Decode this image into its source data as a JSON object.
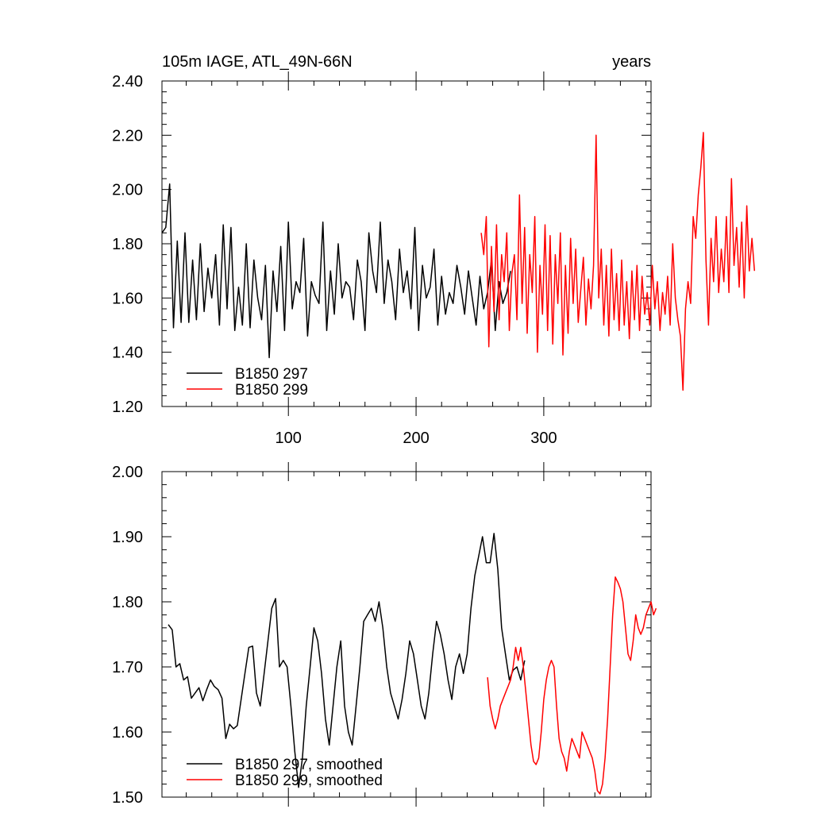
{
  "chart_data": [
    {
      "type": "line",
      "title_left": "105m IAGE, ATL_49N-66N",
      "title_right": "years",
      "xlim": [
        1,
        384
      ],
      "ylim": [
        1.2,
        2.4
      ],
      "x_ticks": [
        100,
        200,
        300
      ],
      "x_tick_labels": [
        "100",
        "200",
        "300"
      ],
      "y_ticks": [
        1.2,
        1.4,
        1.6,
        1.8,
        2.0,
        2.2,
        2.4
      ],
      "y_tick_labels": [
        "1.20",
        "1.40",
        "1.60",
        "1.80",
        "2.00",
        "2.20",
        "2.40"
      ],
      "legend_position": "bottom-left",
      "series": [
        {
          "name": "B1850 297",
          "color": "#000000",
          "x_start": 1,
          "x_step": 3,
          "values": [
            1.84,
            1.86,
            2.02,
            1.49,
            1.81,
            1.51,
            1.84,
            1.51,
            1.74,
            1.52,
            1.8,
            1.55,
            1.71,
            1.6,
            1.76,
            1.5,
            1.87,
            1.56,
            1.86,
            1.48,
            1.64,
            1.5,
            1.8,
            1.49,
            1.74,
            1.6,
            1.52,
            1.72,
            1.38,
            1.7,
            1.55,
            1.79,
            1.48,
            1.88,
            1.56,
            1.66,
            1.62,
            1.82,
            1.46,
            1.66,
            1.61,
            1.58,
            1.88,
            1.48,
            1.7,
            1.54,
            1.8,
            1.6,
            1.66,
            1.64,
            1.52,
            1.74,
            1.66,
            1.48,
            1.84,
            1.7,
            1.62,
            1.88,
            1.58,
            1.74,
            1.66,
            1.52,
            1.78,
            1.62,
            1.7,
            1.56,
            1.86,
            1.48,
            1.72,
            1.6,
            1.64,
            1.78,
            1.5,
            1.68,
            1.54,
            1.62,
            1.58,
            1.72,
            1.64,
            1.54,
            1.7,
            1.6,
            1.5,
            1.68,
            1.56,
            1.62,
            1.74,
            1.48,
            1.66,
            1.58,
            1.62,
            1.7
          ]
        },
        {
          "name": "B1850 299",
          "color": "#ff0000",
          "x_start": 251,
          "x_step": 2,
          "values": [
            1.84,
            1.76,
            1.9,
            1.42,
            1.79,
            1.55,
            1.87,
            1.52,
            1.76,
            1.66,
            1.84,
            1.48,
            1.69,
            1.76,
            1.52,
            1.98,
            1.58,
            1.86,
            1.47,
            1.76,
            1.62,
            1.9,
            1.4,
            1.72,
            1.54,
            1.87,
            1.48,
            1.83,
            1.43,
            1.76,
            1.58,
            1.84,
            1.39,
            1.72,
            1.47,
            1.82,
            1.58,
            1.78,
            1.51,
            1.63,
            1.75,
            1.5,
            1.67,
            1.56,
            1.72,
            2.2,
            1.6,
            1.78,
            1.5,
            1.72,
            1.46,
            1.78,
            1.52,
            1.69,
            1.48,
            1.74,
            1.5,
            1.66,
            1.45,
            1.7,
            1.52,
            1.72,
            1.48,
            1.68,
            1.54,
            1.62,
            1.5,
            1.72,
            1.56,
            1.66,
            1.48,
            1.62,
            1.54,
            1.68,
            1.5,
            1.8,
            1.6,
            1.52,
            1.46,
            1.26,
            1.56,
            1.66,
            1.58,
            1.9,
            1.82,
            1.98,
            2.08,
            2.21,
            1.74,
            1.5,
            1.82,
            1.66,
            1.9,
            1.62,
            1.78,
            1.66,
            1.9,
            1.62,
            2.04,
            1.72,
            1.86,
            1.64,
            1.88,
            1.6,
            1.94,
            1.7,
            1.82,
            1.7
          ]
        }
      ]
    },
    {
      "type": "line",
      "xlim": [
        1,
        384
      ],
      "ylim": [
        1.5,
        2.0
      ],
      "x_ticks": [
        100,
        200,
        300
      ],
      "x_tick_labels": [],
      "y_ticks": [
        1.5,
        1.6,
        1.7,
        1.8,
        1.9,
        2.0
      ],
      "y_tick_labels": [
        "1.50",
        "1.60",
        "1.70",
        "1.80",
        "1.90",
        "2.00"
      ],
      "legend_position": "bottom-left",
      "series": [
        {
          "name": "B1850 297, smoothed",
          "color": "#000000",
          "x_start": 6,
          "x_step": 3,
          "values": [
            1.765,
            1.757,
            1.7,
            1.705,
            1.68,
            1.685,
            1.652,
            1.66,
            1.668,
            1.648,
            1.665,
            1.68,
            1.67,
            1.665,
            1.652,
            1.59,
            1.612,
            1.605,
            1.61,
            1.65,
            1.69,
            1.73,
            1.732,
            1.66,
            1.64,
            1.69,
            1.74,
            1.79,
            1.805,
            1.7,
            1.71,
            1.7,
            1.64,
            1.57,
            1.515,
            1.56,
            1.64,
            1.7,
            1.76,
            1.74,
            1.69,
            1.62,
            1.58,
            1.64,
            1.7,
            1.74,
            1.64,
            1.6,
            1.58,
            1.64,
            1.7,
            1.77,
            1.78,
            1.79,
            1.77,
            1.8,
            1.76,
            1.7,
            1.66,
            1.64,
            1.62,
            1.65,
            1.69,
            1.74,
            1.72,
            1.68,
            1.64,
            1.62,
            1.66,
            1.72,
            1.77,
            1.75,
            1.72,
            1.68,
            1.65,
            1.7,
            1.72,
            1.69,
            1.72,
            1.79,
            1.84,
            1.87,
            1.9,
            1.86,
            1.86,
            1.905,
            1.85,
            1.76,
            1.72,
            1.68,
            1.695,
            1.7,
            1.68,
            1.71
          ]
        },
        {
          "name": "B1850 299, smoothed",
          "color": "#ff0000",
          "x_start": 256,
          "x_step": 2,
          "values": [
            1.684,
            1.64,
            1.62,
            1.605,
            1.62,
            1.64,
            1.65,
            1.66,
            1.67,
            1.68,
            1.7,
            1.73,
            1.71,
            1.73,
            1.7,
            1.66,
            1.62,
            1.58,
            1.555,
            1.55,
            1.56,
            1.6,
            1.65,
            1.68,
            1.7,
            1.71,
            1.7,
            1.64,
            1.59,
            1.57,
            1.56,
            1.54,
            1.57,
            1.59,
            1.58,
            1.57,
            1.56,
            1.6,
            1.59,
            1.58,
            1.57,
            1.56,
            1.54,
            1.51,
            1.505,
            1.52,
            1.56,
            1.62,
            1.7,
            1.78,
            1.838,
            1.83,
            1.82,
            1.8,
            1.76,
            1.72,
            1.71,
            1.74,
            1.78,
            1.76,
            1.75,
            1.76,
            1.78,
            1.79,
            1.8,
            1.78,
            1.79
          ]
        }
      ]
    }
  ]
}
